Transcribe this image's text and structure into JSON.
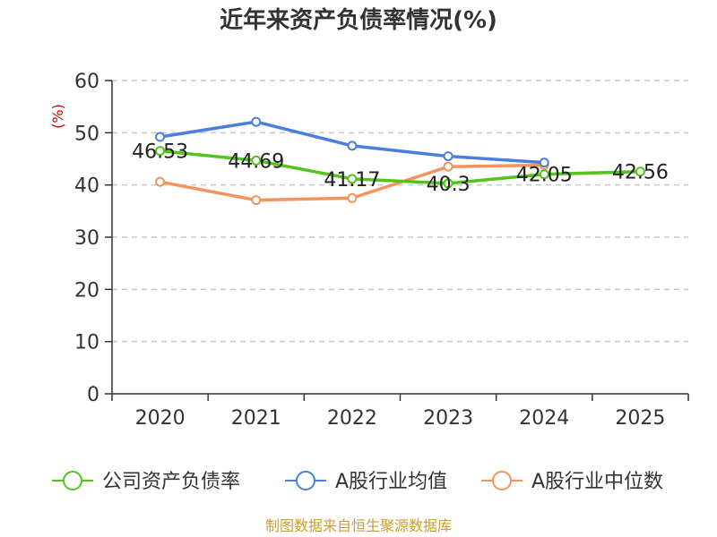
{
  "chart_data": {
    "type": "line",
    "title": "近年来资产负债率情况(%)",
    "ylabel": "(%)",
    "xlabel": "",
    "categories": [
      "2020",
      "2021",
      "2022",
      "2023",
      "2024",
      "2025"
    ],
    "ylim": [
      0,
      60
    ],
    "yticks": [
      0,
      10,
      20,
      30,
      40,
      50,
      60
    ],
    "grid": true,
    "legend_position": "bottom",
    "series": [
      {
        "name": "公司资产负债率",
        "color": "#52c41a",
        "values": [
          46.53,
          44.69,
          41.17,
          40.3,
          42.05,
          42.56
        ],
        "labels": [
          "46.53",
          "44.69",
          "41.17",
          "40.3",
          "42.05",
          "42.56"
        ]
      },
      {
        "name": "A股行业均值",
        "color": "#4a7fdc",
        "values": [
          49.2,
          52.1,
          47.5,
          45.5,
          44.3,
          null
        ]
      },
      {
        "name": "A股行业中位数",
        "color": "#f4935c",
        "values": [
          40.6,
          37.1,
          37.5,
          43.5,
          43.8,
          null
        ]
      }
    ],
    "source": "制图数据来自恒生聚源数据库"
  }
}
